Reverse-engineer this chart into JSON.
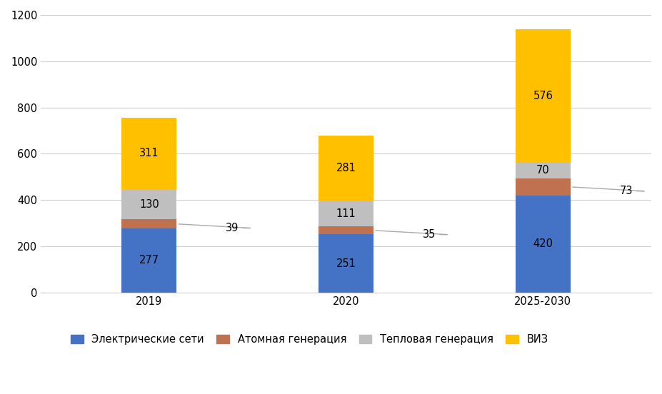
{
  "categories": [
    "2019",
    "2020",
    "2025-2030"
  ],
  "series": {
    "Электрические сети": [
      277,
      251,
      420
    ],
    "Атомная генерация": [
      39,
      35,
      73
    ],
    "Тепловая генерация": [
      130,
      111,
      70
    ],
    "ВИЗ": [
      311,
      281,
      576
    ]
  },
  "colors": {
    "Электрические сети": "#4472C4",
    "Атомная генерация": "#C0714F",
    "Тепловая генерация": "#BFBFBF",
    "ВИЗ": "#FFC000"
  },
  "ylim": [
    0,
    1200
  ],
  "yticks": [
    0,
    200,
    400,
    600,
    800,
    1000,
    1200
  ],
  "bar_width": 0.28,
  "label_fontsize": 10.5,
  "tick_fontsize": 10.5,
  "legend_fontsize": 10.5,
  "background_color": "#FFFFFF",
  "grid_color": "#D0D0D0",
  "layer_order": [
    "Электрические сети",
    "Атомная генерация",
    "Тепловая генерация",
    "ВИЗ"
  ]
}
